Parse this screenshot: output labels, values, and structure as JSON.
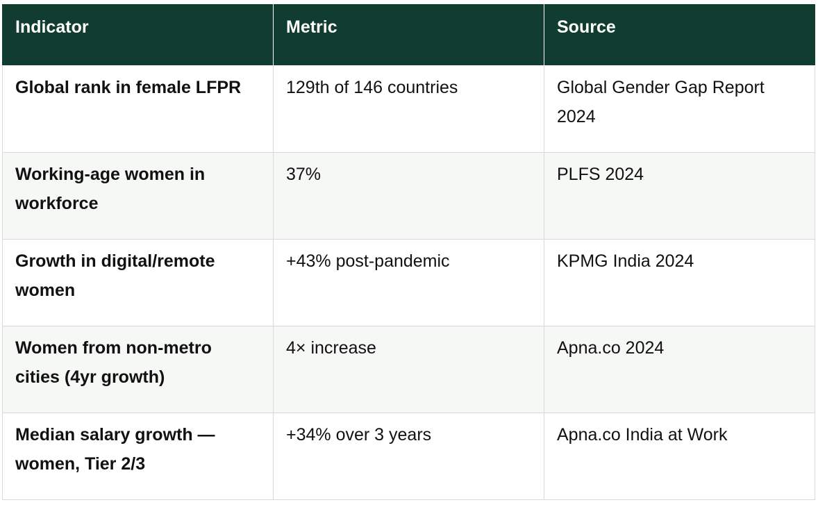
{
  "table": {
    "headers": [
      "Indicator",
      "Metric",
      "Source"
    ],
    "rows": [
      [
        "Global rank in female LFPR",
        "129th of 146 countries",
        "Global Gender Gap Report 2024"
      ],
      [
        "Working-age women in workforce",
        "37%",
        "PLFS 2024"
      ],
      [
        "Growth in digital/remote women",
        "+43% post-pandemic",
        "KPMG India 2024"
      ],
      [
        "Women from non-metro cities (4yr growth)",
        "4× increase",
        "Apna.co 2024"
      ],
      [
        "Median salary growth — women, Tier 2/3",
        "+34% over 3 years",
        "Apna.co India at Work"
      ]
    ]
  },
  "colors": {
    "header_bg": "#103d30",
    "header_text": "#ffffff",
    "alt_row_bg": "#f6f8f5",
    "border": "#d9d9d9"
  }
}
